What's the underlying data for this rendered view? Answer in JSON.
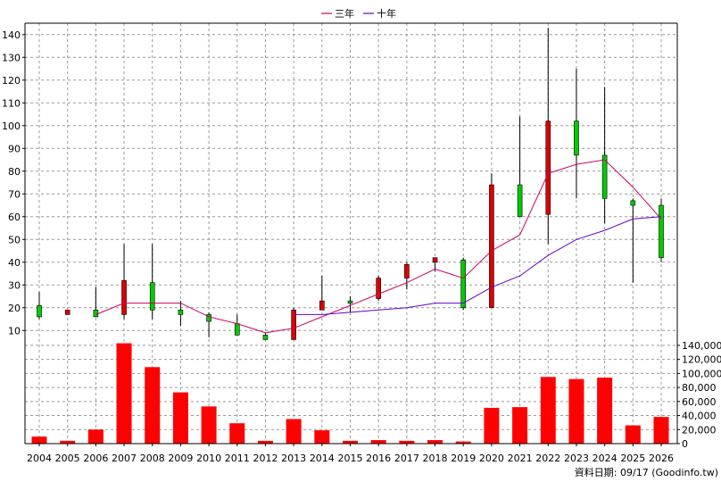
{
  "chart_data": {
    "type": "candlestick+bar",
    "legend": [
      "三年",
      "十年"
    ],
    "legend_colors": [
      "#cc0066",
      "#6600cc"
    ],
    "years": [
      "2004",
      "2005",
      "2006",
      "2007",
      "2008",
      "2009",
      "2010",
      "2011",
      "2012",
      "2013",
      "2014",
      "2015",
      "2016",
      "2017",
      "2018",
      "2019",
      "2020",
      "2021",
      "2022",
      "2023",
      "2024",
      "2025",
      "2026"
    ],
    "price_axis": {
      "ylim": [
        5,
        145
      ],
      "ticks": [
        10,
        20,
        30,
        40,
        50,
        60,
        70,
        80,
        90,
        100,
        110,
        120,
        130,
        140
      ]
    },
    "candles": [
      {
        "open": 16,
        "close": 21,
        "high": 27,
        "low": 15
      },
      {
        "open": 19,
        "close": 17,
        "high": 19,
        "low": 17
      },
      {
        "open": 16,
        "close": 19,
        "high": 29,
        "low": 16
      },
      {
        "open": 32,
        "close": 17,
        "high": 48,
        "low": 15
      },
      {
        "open": 19,
        "close": 31,
        "high": 48,
        "low": 15
      },
      {
        "open": 17,
        "close": 19,
        "high": 23,
        "low": 12
      },
      {
        "open": 14,
        "close": 17,
        "high": 18,
        "low": 7
      },
      {
        "open": 8,
        "close": 13,
        "high": 17,
        "low": 8
      },
      {
        "open": 6,
        "close": 8,
        "high": 9,
        "low": 6
      },
      {
        "open": 19,
        "close": 6,
        "high": 20,
        "low": 6
      },
      {
        "open": 23,
        "close": 19,
        "high": 34,
        "low": 19
      },
      {
        "open": 22,
        "close": 23,
        "high": 25,
        "low": 18
      },
      {
        "open": 33,
        "close": 24,
        "high": 34,
        "low": 23
      },
      {
        "open": 39,
        "close": 33,
        "high": 40,
        "low": 28
      },
      {
        "open": 42,
        "close": 40,
        "high": 42,
        "low": 36
      },
      {
        "open": 20,
        "close": 41,
        "high": 42,
        "low": 19
      },
      {
        "open": 74,
        "close": 20,
        "high": 79,
        "low": 20
      },
      {
        "open": 60,
        "close": 74,
        "high": 104,
        "low": 60
      },
      {
        "open": 102,
        "close": 61,
        "high": 143,
        "low": 48
      },
      {
        "open": 87,
        "close": 102,
        "high": 125,
        "low": 68
      },
      {
        "open": 68,
        "close": 87,
        "high": 117,
        "low": 57
      },
      {
        "open": 65,
        "close": 67,
        "high": 68,
        "low": 31
      },
      {
        "open": 42,
        "close": 65,
        "high": 68,
        "low": 40
      }
    ],
    "series": [
      {
        "name": "三年",
        "values": [
          null,
          null,
          17,
          22,
          22,
          22,
          16,
          13,
          9,
          11,
          16,
          21,
          26,
          31,
          37,
          33,
          45,
          52,
          79,
          83,
          85,
          73,
          59
        ]
      },
      {
        "name": "十年",
        "values": [
          null,
          null,
          null,
          null,
          null,
          null,
          null,
          null,
          null,
          17,
          17,
          18,
          19,
          20,
          22,
          22,
          29,
          34,
          43,
          50,
          54,
          59,
          60
        ]
      }
    ],
    "volume_axis": {
      "ylim": [
        0,
        145000
      ],
      "ticks": [
        "0",
        "20,000",
        "40,000",
        "60,000",
        "80,000",
        "100,000",
        "120,000",
        "140,000"
      ]
    },
    "volume": [
      10000,
      4000,
      20000,
      143000,
      109000,
      73000,
      53000,
      29000,
      4000,
      35000,
      19000,
      4000,
      5000,
      4000,
      5000,
      3000,
      51000,
      52000,
      95000,
      92000,
      94000,
      26000,
      38000
    ],
    "footer": "資料日期: 09/17  (Goodinfo.tw)"
  }
}
